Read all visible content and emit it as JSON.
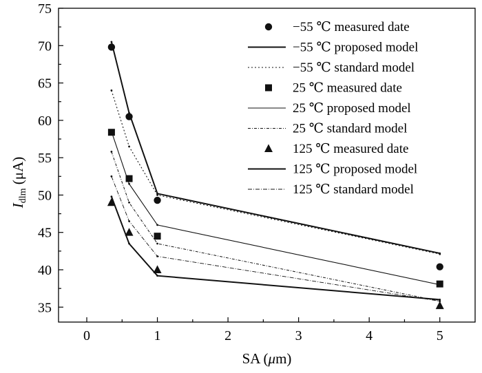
{
  "chart_data": {
    "type": "line",
    "title": "",
    "xlabel_main": "SA (",
    "xlabel_greek": "μ",
    "xlabel_rest": "m)",
    "ylabel_main": "I",
    "ylabel_sub": "dlm",
    "ylabel_unit": " (μA)",
    "xlim": [
      -0.4,
      5.5
    ],
    "ylim": [
      33,
      75
    ],
    "xticks": [
      0,
      1,
      2,
      3,
      4,
      5
    ],
    "yticks": [
      35,
      40,
      45,
      50,
      55,
      60,
      65,
      70,
      75
    ],
    "grid": false,
    "legend_position": "top-right",
    "series": [
      {
        "name": "−55 ℃ measured date",
        "kind": "markers",
        "marker": "circle",
        "x": [
          0.35,
          0.6,
          1,
          5
        ],
        "y": [
          69.8,
          60.5,
          49.3,
          40.4
        ]
      },
      {
        "name": "−55 ℃ proposed model",
        "kind": "line",
        "style": "solid-thick",
        "x": [
          0.35,
          0.6,
          1,
          5
        ],
        "y": [
          70.5,
          61.0,
          50.2,
          42.2
        ]
      },
      {
        "name": "−55 ℃ standard model",
        "kind": "line",
        "style": "dotted",
        "x": [
          0.35,
          0.6,
          1,
          5
        ],
        "y": [
          64.0,
          56.5,
          50.0,
          42.1
        ]
      },
      {
        "name": "25 ℃ measured date",
        "kind": "markers",
        "marker": "square",
        "x": [
          0.35,
          0.6,
          1,
          5
        ],
        "y": [
          58.4,
          52.2,
          44.5,
          38.1
        ]
      },
      {
        "name": "25 ℃ proposed model",
        "kind": "line",
        "style": "solid-thin",
        "x": [
          0.35,
          0.6,
          1,
          5
        ],
        "y": [
          58.5,
          51.5,
          46.0,
          38.0
        ]
      },
      {
        "name": "25 ℃ standard model",
        "kind": "line",
        "style": "dash-dot",
        "x": [
          0.35,
          0.6,
          1,
          5
        ],
        "y": [
          55.8,
          49.0,
          43.5,
          35.8
        ]
      },
      {
        "name": "125 ℃ measured date",
        "kind": "markers",
        "marker": "triangle",
        "x": [
          0.35,
          0.6,
          1,
          5
        ],
        "y": [
          49.0,
          45.0,
          40.0,
          35.2
        ]
      },
      {
        "name": "125 ℃ proposed model",
        "kind": "line",
        "style": "solid-thick",
        "x": [
          0.35,
          0.6,
          1,
          5
        ],
        "y": [
          49.8,
          43.5,
          39.2,
          36.0
        ]
      },
      {
        "name": "125 ℃ standard model",
        "kind": "line",
        "style": "dash-dot-thin",
        "x": [
          0.35,
          0.6,
          1,
          5
        ],
        "y": [
          52.5,
          46.5,
          41.8,
          35.8
        ]
      }
    ]
  }
}
